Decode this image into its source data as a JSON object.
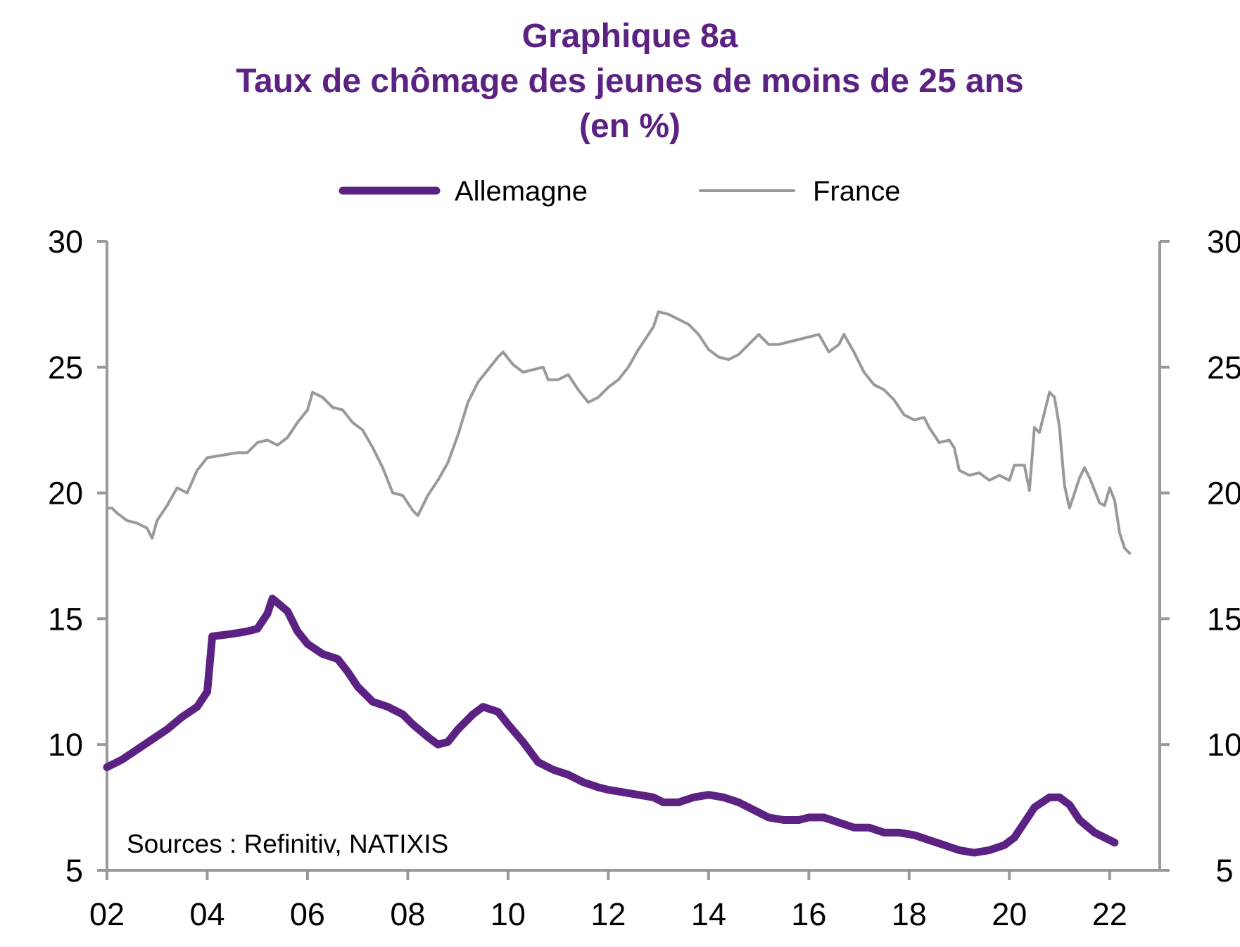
{
  "chart_data": {
    "type": "line",
    "title_lines": [
      "Graphique 8a",
      "Taux de chômage des jeunes de moins de 25 ans",
      "(en %)"
    ],
    "source": "Sources :  Refinitiv, NATIXIS",
    "x_ticks": [
      "02",
      "04",
      "06",
      "08",
      "10",
      "12",
      "14",
      "16",
      "18",
      "20",
      "22"
    ],
    "x_tick_years": [
      2002,
      2004,
      2006,
      2008,
      2010,
      2012,
      2014,
      2016,
      2018,
      2020,
      2022
    ],
    "xlim": [
      2002,
      2023
    ],
    "ylim": [
      5,
      30
    ],
    "y_ticks": [
      5,
      10,
      15,
      20,
      25,
      30
    ],
    "y_ticks_right": [
      5,
      10,
      15,
      20,
      25,
      30
    ],
    "legend_position": "top",
    "series": [
      {
        "name": "Allemagne",
        "color": "#5b2283",
        "line": "thick",
        "points": [
          [
            2002.0,
            9.1
          ],
          [
            2002.3,
            9.4
          ],
          [
            2002.6,
            9.8
          ],
          [
            2002.9,
            10.2
          ],
          [
            2003.2,
            10.6
          ],
          [
            2003.5,
            11.1
          ],
          [
            2003.8,
            11.5
          ],
          [
            2004.0,
            12.1
          ],
          [
            2004.1,
            14.3
          ],
          [
            2004.5,
            14.4
          ],
          [
            2004.8,
            14.5
          ],
          [
            2005.0,
            14.6
          ],
          [
            2005.2,
            15.2
          ],
          [
            2005.3,
            15.8
          ],
          [
            2005.6,
            15.3
          ],
          [
            2005.8,
            14.5
          ],
          [
            2006.0,
            14.0
          ],
          [
            2006.3,
            13.6
          ],
          [
            2006.6,
            13.4
          ],
          [
            2006.8,
            12.9
          ],
          [
            2007.0,
            12.3
          ],
          [
            2007.3,
            11.7
          ],
          [
            2007.6,
            11.5
          ],
          [
            2007.9,
            11.2
          ],
          [
            2008.1,
            10.8
          ],
          [
            2008.4,
            10.3
          ],
          [
            2008.6,
            10.0
          ],
          [
            2008.8,
            10.1
          ],
          [
            2009.0,
            10.6
          ],
          [
            2009.3,
            11.2
          ],
          [
            2009.5,
            11.5
          ],
          [
            2009.8,
            11.3
          ],
          [
            2010.0,
            10.8
          ],
          [
            2010.3,
            10.1
          ],
          [
            2010.6,
            9.3
          ],
          [
            2010.9,
            9.0
          ],
          [
            2011.2,
            8.8
          ],
          [
            2011.5,
            8.5
          ],
          [
            2011.8,
            8.3
          ],
          [
            2012.0,
            8.2
          ],
          [
            2012.3,
            8.1
          ],
          [
            2012.6,
            8.0
          ],
          [
            2012.9,
            7.9
          ],
          [
            2013.1,
            7.7
          ],
          [
            2013.4,
            7.7
          ],
          [
            2013.7,
            7.9
          ],
          [
            2014.0,
            8.0
          ],
          [
            2014.3,
            7.9
          ],
          [
            2014.6,
            7.7
          ],
          [
            2014.9,
            7.4
          ],
          [
            2015.2,
            7.1
          ],
          [
            2015.5,
            7.0
          ],
          [
            2015.8,
            7.0
          ],
          [
            2016.0,
            7.1
          ],
          [
            2016.3,
            7.1
          ],
          [
            2016.6,
            6.9
          ],
          [
            2016.9,
            6.7
          ],
          [
            2017.2,
            6.7
          ],
          [
            2017.5,
            6.5
          ],
          [
            2017.8,
            6.5
          ],
          [
            2018.1,
            6.4
          ],
          [
            2018.4,
            6.2
          ],
          [
            2018.7,
            6.0
          ],
          [
            2019.0,
            5.8
          ],
          [
            2019.3,
            5.7
          ],
          [
            2019.6,
            5.8
          ],
          [
            2019.9,
            6.0
          ],
          [
            2020.1,
            6.3
          ],
          [
            2020.3,
            6.9
          ],
          [
            2020.5,
            7.5
          ],
          [
            2020.8,
            7.9
          ],
          [
            2021.0,
            7.9
          ],
          [
            2021.2,
            7.6
          ],
          [
            2021.4,
            7.0
          ],
          [
            2021.7,
            6.5
          ],
          [
            2022.0,
            6.2
          ],
          [
            2022.1,
            6.1
          ]
        ]
      },
      {
        "name": "France",
        "color": "#999999",
        "line": "thin",
        "points": [
          [
            2002.0,
            19.4
          ],
          [
            2002.1,
            19.4
          ],
          [
            2002.2,
            19.2
          ],
          [
            2002.4,
            18.9
          ],
          [
            2002.6,
            18.8
          ],
          [
            2002.8,
            18.6
          ],
          [
            2002.9,
            18.2
          ],
          [
            2003.0,
            18.9
          ],
          [
            2003.2,
            19.5
          ],
          [
            2003.4,
            20.2
          ],
          [
            2003.6,
            20.0
          ],
          [
            2003.8,
            20.9
          ],
          [
            2004.0,
            21.4
          ],
          [
            2004.3,
            21.5
          ],
          [
            2004.6,
            21.6
          ],
          [
            2004.8,
            21.6
          ],
          [
            2005.0,
            22.0
          ],
          [
            2005.2,
            22.1
          ],
          [
            2005.4,
            21.9
          ],
          [
            2005.6,
            22.2
          ],
          [
            2005.8,
            22.8
          ],
          [
            2006.0,
            23.3
          ],
          [
            2006.1,
            24.0
          ],
          [
            2006.3,
            23.8
          ],
          [
            2006.5,
            23.4
          ],
          [
            2006.7,
            23.3
          ],
          [
            2006.9,
            22.8
          ],
          [
            2007.1,
            22.5
          ],
          [
            2007.3,
            21.8
          ],
          [
            2007.5,
            21.0
          ],
          [
            2007.7,
            20.0
          ],
          [
            2007.9,
            19.9
          ],
          [
            2008.1,
            19.3
          ],
          [
            2008.2,
            19.1
          ],
          [
            2008.4,
            19.9
          ],
          [
            2008.6,
            20.5
          ],
          [
            2008.8,
            21.2
          ],
          [
            2009.0,
            22.3
          ],
          [
            2009.2,
            23.6
          ],
          [
            2009.4,
            24.4
          ],
          [
            2009.6,
            24.9
          ],
          [
            2009.8,
            25.4
          ],
          [
            2009.9,
            25.6
          ],
          [
            2010.1,
            25.1
          ],
          [
            2010.3,
            24.8
          ],
          [
            2010.5,
            24.9
          ],
          [
            2010.7,
            25.0
          ],
          [
            2010.8,
            24.5
          ],
          [
            2011.0,
            24.5
          ],
          [
            2011.2,
            24.7
          ],
          [
            2011.4,
            24.1
          ],
          [
            2011.6,
            23.6
          ],
          [
            2011.8,
            23.8
          ],
          [
            2012.0,
            24.2
          ],
          [
            2012.2,
            24.5
          ],
          [
            2012.4,
            25.0
          ],
          [
            2012.6,
            25.7
          ],
          [
            2012.9,
            26.6
          ],
          [
            2013.0,
            27.2
          ],
          [
            2013.2,
            27.1
          ],
          [
            2013.4,
            26.9
          ],
          [
            2013.6,
            26.7
          ],
          [
            2013.8,
            26.3
          ],
          [
            2014.0,
            25.7
          ],
          [
            2014.2,
            25.4
          ],
          [
            2014.4,
            25.3
          ],
          [
            2014.6,
            25.5
          ],
          [
            2014.8,
            25.9
          ],
          [
            2015.0,
            26.3
          ],
          [
            2015.2,
            25.9
          ],
          [
            2015.4,
            25.9
          ],
          [
            2015.6,
            26.0
          ],
          [
            2015.8,
            26.1
          ],
          [
            2016.0,
            26.2
          ],
          [
            2016.2,
            26.3
          ],
          [
            2016.4,
            25.6
          ],
          [
            2016.6,
            25.9
          ],
          [
            2016.7,
            26.3
          ],
          [
            2016.9,
            25.6
          ],
          [
            2017.1,
            24.8
          ],
          [
            2017.3,
            24.3
          ],
          [
            2017.5,
            24.1
          ],
          [
            2017.7,
            23.7
          ],
          [
            2017.9,
            23.1
          ],
          [
            2018.1,
            22.9
          ],
          [
            2018.3,
            23.0
          ],
          [
            2018.4,
            22.6
          ],
          [
            2018.6,
            22.0
          ],
          [
            2018.8,
            22.1
          ],
          [
            2018.9,
            21.8
          ],
          [
            2019.0,
            20.9
          ],
          [
            2019.2,
            20.7
          ],
          [
            2019.4,
            20.8
          ],
          [
            2019.6,
            20.5
          ],
          [
            2019.8,
            20.7
          ],
          [
            2020.0,
            20.5
          ],
          [
            2020.1,
            21.1
          ],
          [
            2020.3,
            21.1
          ],
          [
            2020.4,
            20.1
          ],
          [
            2020.5,
            22.6
          ],
          [
            2020.6,
            22.4
          ],
          [
            2020.8,
            24.0
          ],
          [
            2020.9,
            23.8
          ],
          [
            2021.0,
            22.6
          ],
          [
            2021.1,
            20.3
          ],
          [
            2021.2,
            19.4
          ],
          [
            2021.4,
            20.6
          ],
          [
            2021.5,
            21.0
          ],
          [
            2021.6,
            20.6
          ],
          [
            2021.8,
            19.6
          ],
          [
            2021.9,
            19.5
          ],
          [
            2022.0,
            20.2
          ],
          [
            2022.1,
            19.7
          ],
          [
            2022.2,
            18.4
          ],
          [
            2022.3,
            17.8
          ],
          [
            2022.4,
            17.6
          ]
        ]
      }
    ]
  }
}
